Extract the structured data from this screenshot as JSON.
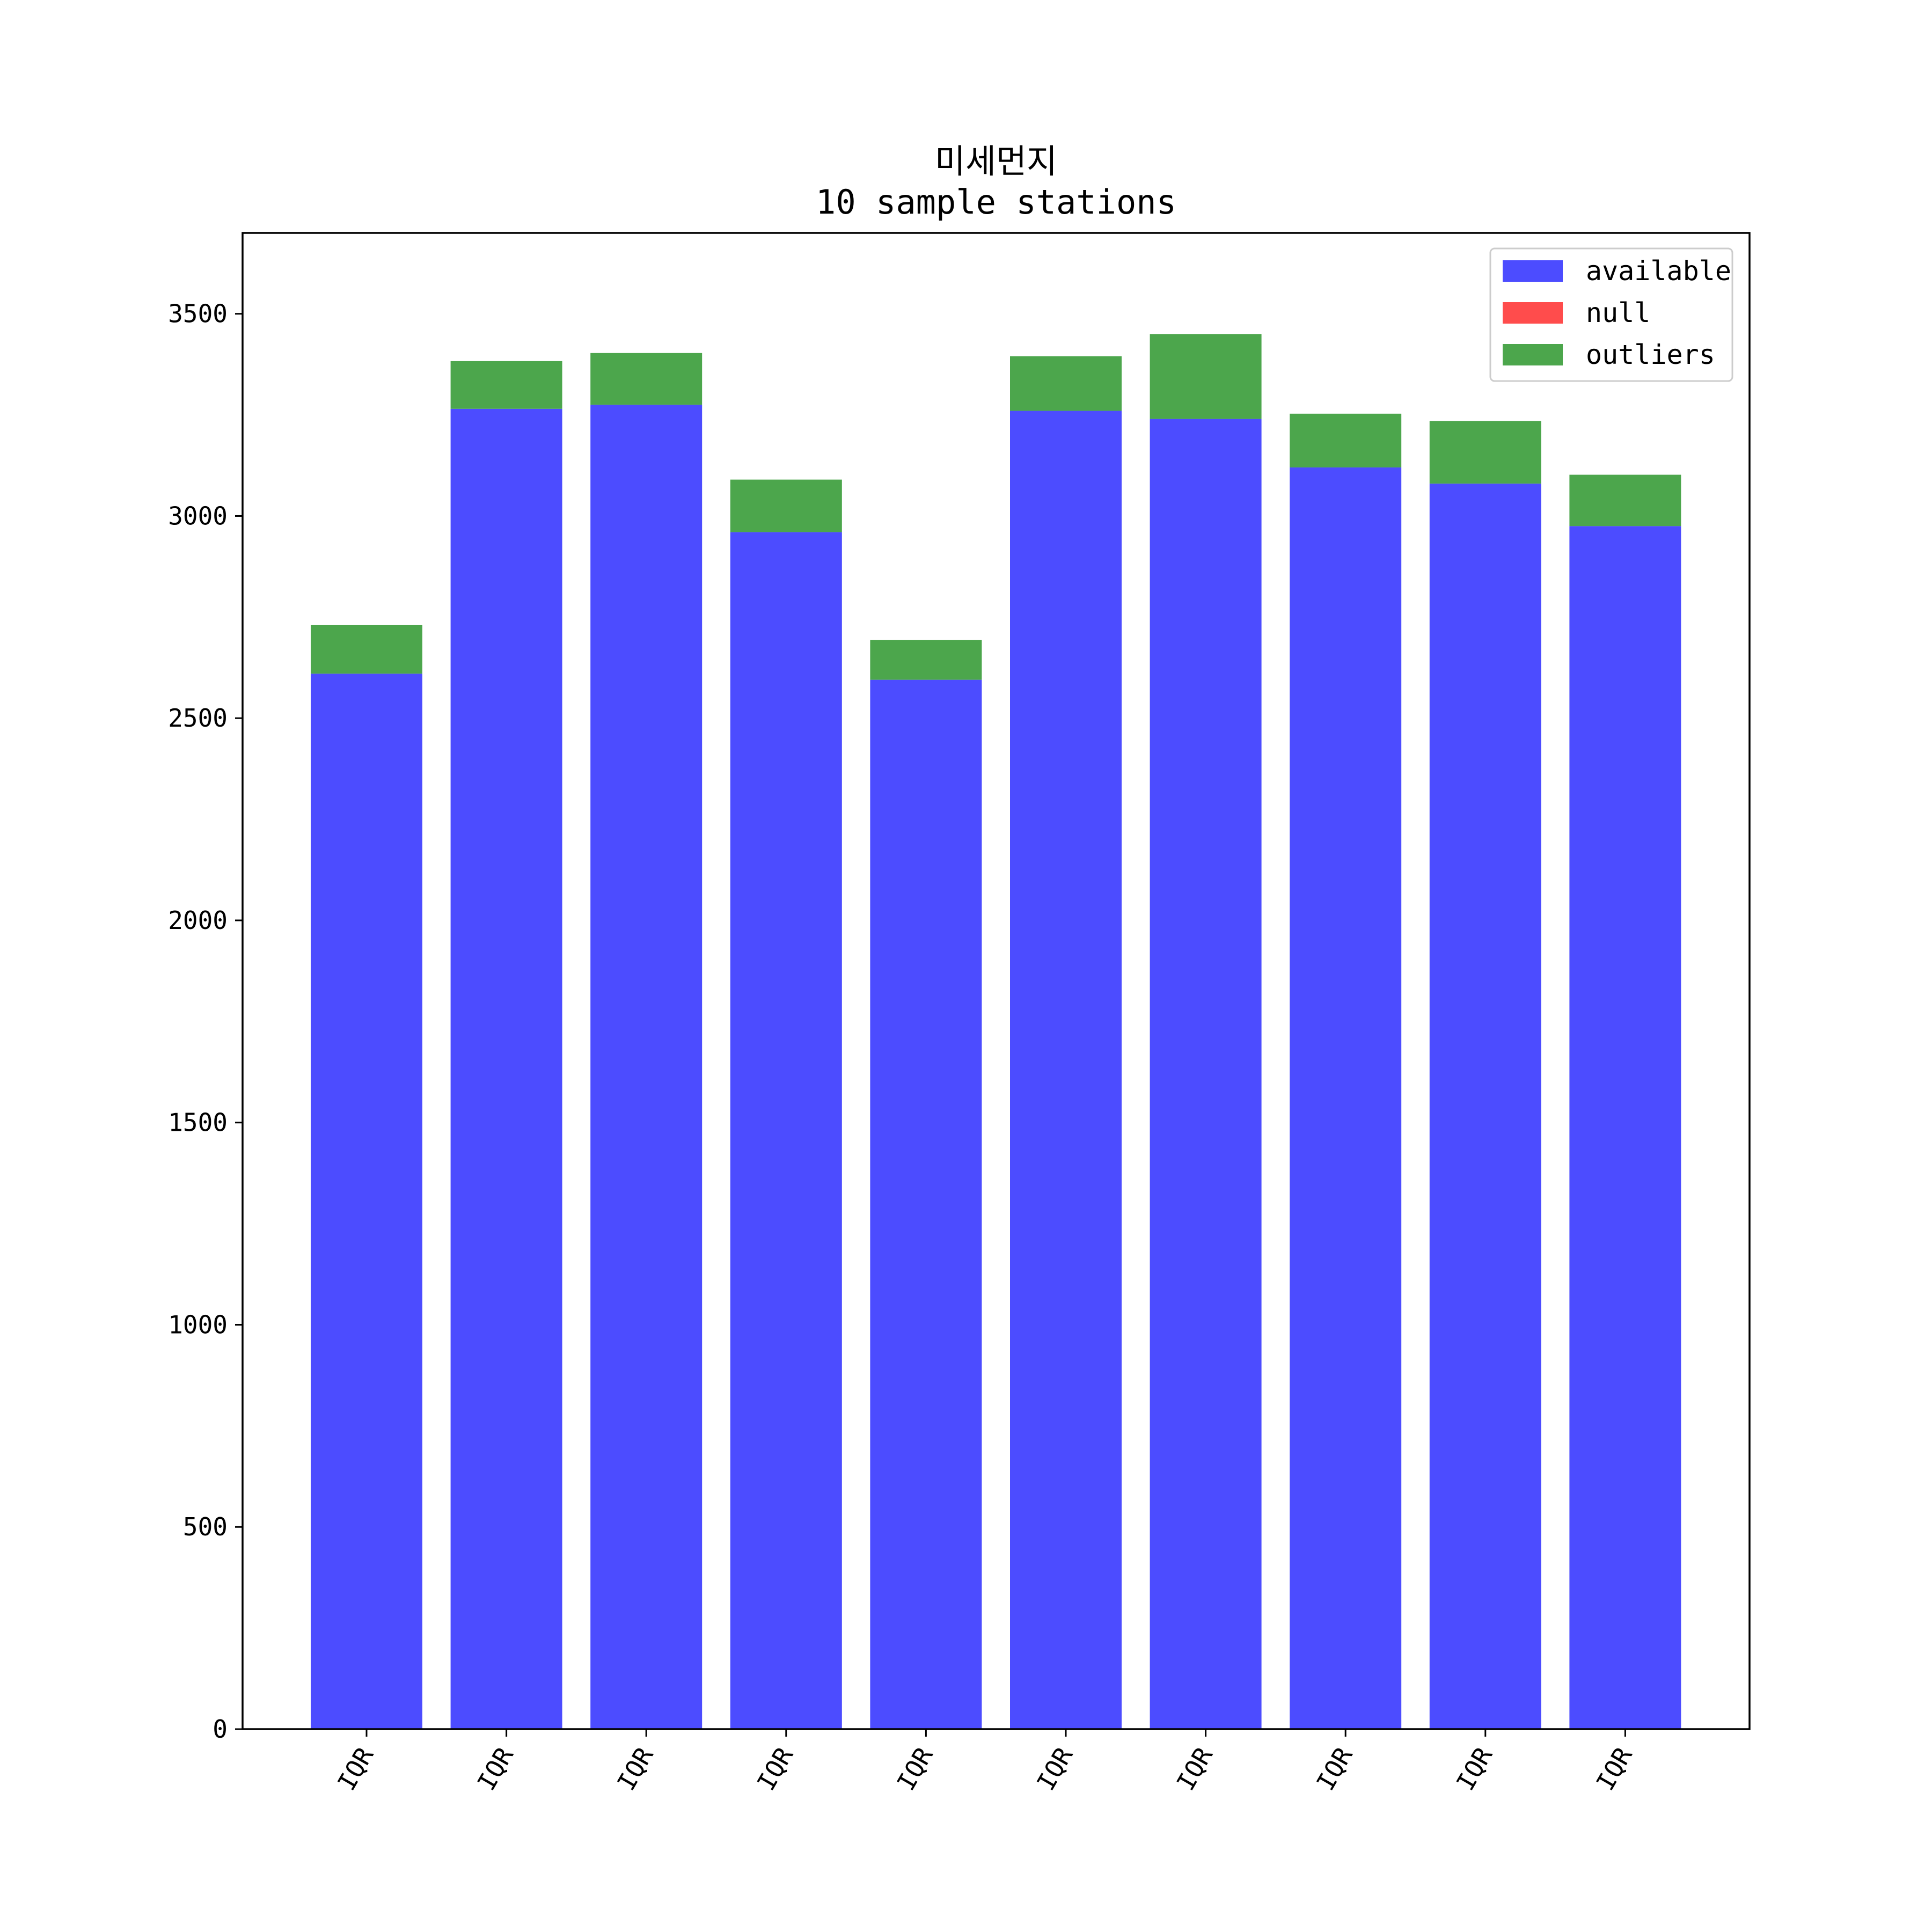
{
  "chart_data": {
    "type": "bar",
    "stacked": true,
    "title": "미세먼지",
    "subtitle": "10 sample stations",
    "xlabel": "",
    "ylabel": "",
    "categories": [
      "IQR",
      "IQR",
      "IQR",
      "IQR",
      "IQR",
      "IQR",
      "IQR",
      "IQR",
      "IQR",
      "IQR"
    ],
    "series": [
      {
        "name": "available",
        "color": "#4c4cff",
        "values": [
          2610,
          3265,
          3275,
          2960,
          2595,
          3260,
          3240,
          3120,
          3080,
          2975
        ]
      },
      {
        "name": "null",
        "color": "#ff4c4c",
        "values": [
          0,
          0,
          0,
          0,
          0,
          0,
          0,
          0,
          0,
          0
        ]
      },
      {
        "name": "outliers",
        "color": "#4ca64c",
        "values": [
          120,
          118,
          128,
          130,
          98,
          135,
          210,
          133,
          155,
          127
        ]
      }
    ],
    "ylim": [
      0,
      3700
    ],
    "yticks": [
      0,
      500,
      1000,
      1500,
      2000,
      2500,
      3000,
      3500
    ],
    "grid": false,
    "legend_position": "top-right",
    "xtick_rotation": 60
  }
}
